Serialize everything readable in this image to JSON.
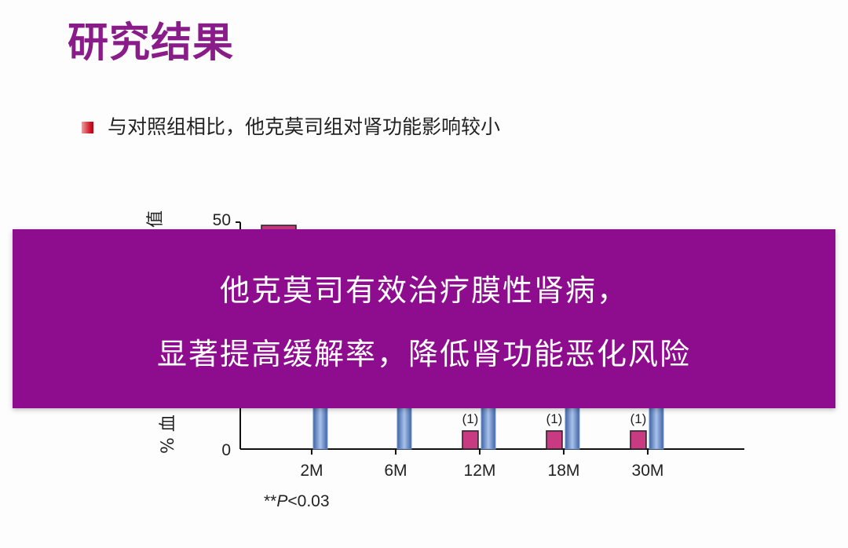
{
  "slide": {
    "title": "研究结果",
    "bullet": "与对照组相比，他克莫司组对肾功能影响较小"
  },
  "chart_data": {
    "type": "bar",
    "ylabel_visible_fragment_top": "值",
    "ylabel_visible_fragment_bottom": "% 血",
    "yticks": [
      "0",
      "50"
    ],
    "ylim": [
      0,
      50
    ],
    "categories": [
      "2M",
      "6M",
      "12M",
      "18M",
      "30M"
    ],
    "series": [
      {
        "color": "#c83a82",
        "values": [
          null,
          null,
          4,
          4,
          4
        ]
      },
      {
        "color": "#6f93cc",
        "values": [
          null,
          null,
          null,
          null,
          null
        ]
      }
    ],
    "annotations_visible": [
      "(1)",
      "(1)",
      "(1)"
    ],
    "footnote_prefix": "**",
    "footnote_italic": "P",
    "footnote_suffix": "<0.03"
  },
  "overlay": {
    "line1": "他克莫司有效治疗膜性肾病，",
    "line2": "显著提高缓解率，降低肾功能恶化风险"
  },
  "colors": {
    "title": "#8a1c8a",
    "banner": "#8e0d8e",
    "bar_pink": "#c83a82",
    "bar_blue": "#6f93cc"
  }
}
